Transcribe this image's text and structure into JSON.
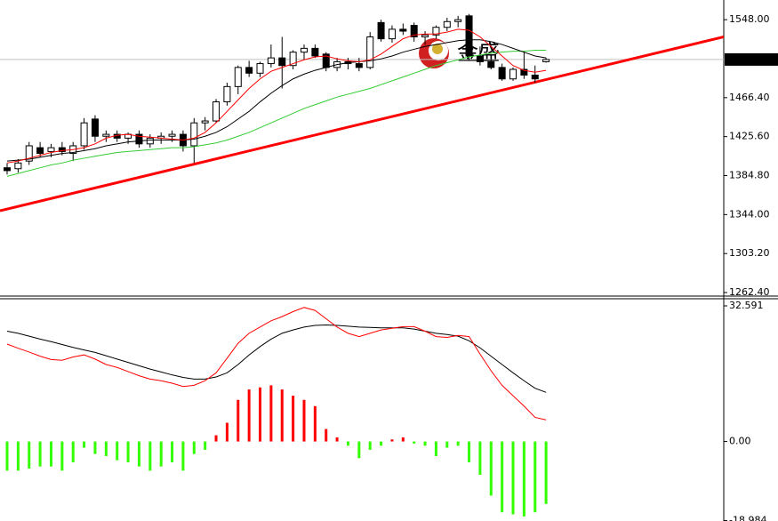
{
  "chart_data": [
    {
      "type": "candlestick",
      "ylim": [
        1258.7,
        1568.6
      ],
      "yticks": [
        {
          "value": 1548,
          "label": "1548.00"
        },
        {
          "value": 1466.4,
          "label": "1466.40"
        },
        {
          "value": 1425.6,
          "label": "1425.60"
        },
        {
          "value": 1384.8,
          "label": "1384.80"
        },
        {
          "value": 1344,
          "label": "1344.00"
        },
        {
          "value": 1303.2,
          "label": "1303.20"
        },
        {
          "value": 1262.4,
          "label": "1262.40"
        }
      ],
      "current_price": 1506.32,
      "watermark": "金盛",
      "open": [
        1393,
        1392,
        1400,
        1414,
        1410,
        1414,
        1408,
        1416,
        1444,
        1426,
        1428,
        1424,
        1428,
        1418,
        1424,
        1426,
        1428,
        1416,
        1440,
        1442,
        1462,
        1478,
        1498,
        1492,
        1502,
        1508,
        1500,
        1514,
        1518,
        1512,
        1498,
        1504,
        1502,
        1498,
        1545,
        1528,
        1538,
        1542,
        1530,
        1532,
        1540,
        1546,
        1552,
        1510,
        1504,
        1498,
        1486,
        1496,
        1490,
        1504
      ],
      "high": [
        1398,
        1402,
        1420,
        1420,
        1418,
        1420,
        1420,
        1445,
        1448,
        1432,
        1432,
        1430,
        1432,
        1428,
        1430,
        1432,
        1432,
        1445,
        1446,
        1465,
        1482,
        1500,
        1505,
        1504,
        1522,
        1530,
        1516,
        1522,
        1522,
        1514,
        1508,
        1508,
        1508,
        1535,
        1548,
        1542,
        1544,
        1545,
        1536,
        1542,
        1550,
        1552,
        1554,
        1520,
        1512,
        1502,
        1498,
        1515,
        1500,
        1508
      ],
      "low": [
        1386,
        1388,
        1396,
        1404,
        1404,
        1406,
        1400,
        1412,
        1420,
        1420,
        1420,
        1418,
        1414,
        1414,
        1418,
        1420,
        1410,
        1398,
        1432,
        1440,
        1458,
        1470,
        1488,
        1488,
        1498,
        1476,
        1496,
        1506,
        1508,
        1494,
        1494,
        1496,
        1494,
        1496,
        1525,
        1524,
        1532,
        1525,
        1522,
        1528,
        1536,
        1540,
        1505,
        1500,
        1496,
        1484,
        1484,
        1486,
        1482,
        1503
      ],
      "close": [
        1390,
        1398,
        1416,
        1408,
        1414,
        1410,
        1416,
        1440,
        1426,
        1428,
        1424,
        1428,
        1418,
        1424,
        1426,
        1428,
        1416,
        1440,
        1442,
        1462,
        1478,
        1498,
        1492,
        1502,
        1508,
        1500,
        1514,
        1518,
        1510,
        1498,
        1504,
        1502,
        1498,
        1530,
        1528,
        1538,
        1536,
        1530,
        1532,
        1540,
        1546,
        1548,
        1510,
        1504,
        1498,
        1486,
        1496,
        1490,
        1486,
        1506.32
      ],
      "up_color": "#ffffff",
      "down_color": "#000000",
      "moving_averages": [
        {
          "color": "#33cc33",
          "values": [
            1384,
            1387,
            1390,
            1393,
            1396,
            1398,
            1401,
            1403,
            1405,
            1407,
            1409,
            1410,
            1411,
            1412,
            1413,
            1414,
            1414,
            1415,
            1417,
            1419,
            1422,
            1426,
            1430,
            1435,
            1440,
            1445,
            1450,
            1455,
            1459,
            1463,
            1467,
            1470,
            1473,
            1476,
            1480,
            1484,
            1488,
            1492,
            1496,
            1500,
            1503,
            1506,
            1509,
            1511,
            1513,
            1514,
            1515,
            1515,
            1516,
            1516
          ]
        },
        {
          "color": "#000000",
          "values": [
            1400,
            1401,
            1402,
            1404,
            1406,
            1408,
            1409,
            1411,
            1413,
            1416,
            1418,
            1420,
            1421,
            1422,
            1422,
            1422,
            1422,
            1423,
            1426,
            1430,
            1436,
            1444,
            1452,
            1462,
            1471,
            1479,
            1486,
            1491,
            1495,
            1498,
            1501,
            1503,
            1504,
            1505,
            1507,
            1510,
            1514,
            1517,
            1520,
            1522,
            1524,
            1526,
            1527,
            1527,
            1525,
            1522,
            1518,
            1514,
            1510,
            1508
          ]
        },
        {
          "color": "#ff0000",
          "values": [
            1398,
            1400,
            1403,
            1406,
            1409,
            1411,
            1412,
            1414,
            1418,
            1424,
            1427,
            1428,
            1426,
            1425,
            1424,
            1423,
            1422,
            1424,
            1430,
            1440,
            1452,
            1464,
            1476,
            1486,
            1494,
            1498,
            1502,
            1506,
            1509,
            1510,
            1507,
            1505,
            1504,
            1506,
            1512,
            1520,
            1528,
            1532,
            1533,
            1533,
            1535,
            1538,
            1537,
            1530,
            1520,
            1510,
            1500,
            1495,
            1493,
            1495
          ]
        }
      ],
      "trend_line": {
        "color": "#ff0000",
        "values": [
          1348,
          1530
        ]
      }
    },
    {
      "type": "macd",
      "ylim": [
        -19.1,
        34.3
      ],
      "yticks": [
        32.591,
        {
          "value": 0,
          "label": "0.00"
        },
        -18.984
      ],
      "histogram": {
        "up_color": "#ff0000",
        "down_color": "#33ff00",
        "values": [
          -7,
          -7,
          -6.5,
          -6,
          -6,
          -7,
          -5,
          -1.5,
          -3,
          -3.5,
          -4.5,
          -5,
          -6,
          -7,
          -6,
          -5,
          -7,
          -3,
          -2,
          1.5,
          4.5,
          10,
          12.5,
          13,
          13.5,
          12.5,
          11,
          10,
          8.5,
          3,
          1,
          -1,
          -4,
          -2,
          -1,
          0.5,
          1,
          -0.5,
          -1,
          -3.5,
          -1.5,
          -1,
          -5,
          -8,
          -13,
          -17,
          -17.5,
          -18,
          -17,
          -15
        ]
      },
      "series": [
        {
          "color": "#000000",
          "values": [
            26.5,
            26,
            25.3,
            24.6,
            24,
            23.3,
            22.6,
            22,
            21.4,
            20.6,
            19.8,
            19,
            18.2,
            17.4,
            16.7,
            16,
            15.4,
            15,
            15,
            15.5,
            16.5,
            18.5,
            20.8,
            22.8,
            24.6,
            26,
            26.8,
            27.5,
            27.9,
            28,
            27.9,
            27.7,
            27.5,
            27.4,
            27.3,
            27.3,
            27.3,
            27,
            26.5,
            26,
            25.7,
            25.3,
            24.2,
            22.5,
            20.5,
            18.5,
            16.5,
            14.6,
            12.8,
            11.8
          ]
        },
        {
          "color": "#ff0000",
          "values": [
            23.4,
            22.4,
            21.5,
            20.5,
            19.7,
            19.5,
            20.3,
            20.8,
            19.8,
            18.5,
            17.8,
            16.8,
            15.8,
            15,
            14.6,
            14,
            13.2,
            13.5,
            14.6,
            16.5,
            20,
            23.6,
            26,
            27.5,
            29,
            30,
            31.2,
            32.2,
            31.5,
            29.5,
            27.5,
            26,
            25.2,
            26,
            26.8,
            27.2,
            27.6,
            27.6,
            26.5,
            25.2,
            25,
            25.5,
            25.2,
            21,
            17,
            13.5,
            11,
            8.5,
            5.8,
            5.2
          ]
        }
      ]
    }
  ]
}
